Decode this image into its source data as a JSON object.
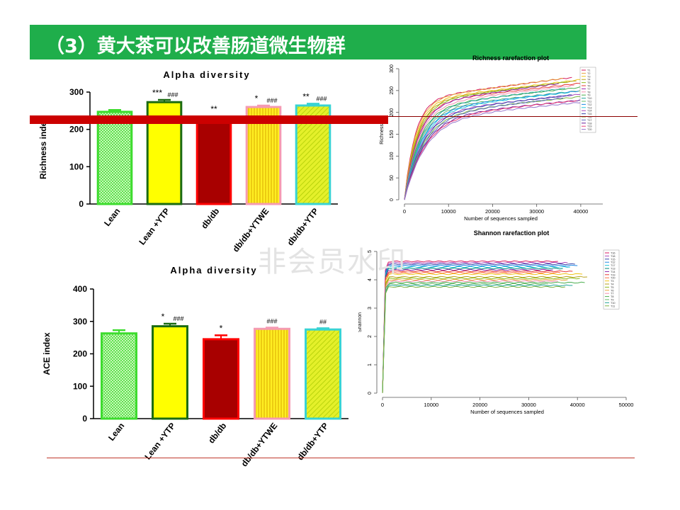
{
  "title": "（3）黄大茶可以改善肠道微生物群",
  "watermark": "非会员水印",
  "chart_data": [
    {
      "type": "bar",
      "title": "Alpha diversity",
      "ylabel": "Richness index",
      "ylim": [
        0,
        300
      ],
      "yticks": [
        "0",
        "100",
        "200",
        "300"
      ],
      "categories": [
        "Lean",
        "Lean +YTP",
        "db/db",
        "db/db+YTWE",
        "db/db+YTP"
      ],
      "values": [
        247,
        273,
        232,
        260,
        264
      ],
      "errors": [
        5,
        6,
        3,
        4,
        5
      ],
      "annotations": [
        {
          "star": "",
          "hash": ""
        },
        {
          "star": "***",
          "hash": "###"
        },
        {
          "star": "**",
          "hash": ""
        },
        {
          "star": "*",
          "hash": "###"
        },
        {
          "star": "**",
          "hash": "###"
        }
      ]
    },
    {
      "type": "bar",
      "title": "Alpha diversity",
      "ylabel": "ACE index",
      "ylim": [
        0,
        400
      ],
      "yticks": [
        "0",
        "100",
        "200",
        "300",
        "400"
      ],
      "categories": [
        "Lean",
        "Lean +YTP",
        "db/db",
        "db/db+YTWE",
        "db/db+YTP"
      ],
      "values": [
        263,
        285,
        245,
        277,
        275
      ],
      "errors": [
        10,
        8,
        12,
        4,
        4
      ],
      "annotations": [
        {
          "star": "",
          "hash": ""
        },
        {
          "star": "*",
          "hash": "###"
        },
        {
          "star": "*",
          "hash": ""
        },
        {
          "star": "",
          "hash": "###"
        },
        {
          "star": "",
          "hash": "##"
        }
      ]
    },
    {
      "type": "line",
      "title": "Richness rarefaction plot",
      "xlabel": "Number of sequences sampled",
      "ylabel": "Richness",
      "xlim": [
        0,
        45000
      ],
      "ylim": [
        0,
        300
      ],
      "xticks": [
        "0",
        "10000",
        "20000",
        "30000",
        "40000"
      ],
      "yticks": [
        "0",
        "50",
        "100",
        "150",
        "200",
        "250",
        "300"
      ],
      "legend_position": "top-right",
      "series": [
        {
          "name": "T1",
          "final_x": 38000,
          "final_y": 280,
          "color": "#d81b60"
        },
        {
          "name": "T2",
          "final_x": 36000,
          "final_y": 278,
          "color": "#e8a33d"
        },
        {
          "name": "T3",
          "final_x": 40000,
          "final_y": 275,
          "color": "#f0c419"
        },
        {
          "name": "T4",
          "final_x": 39000,
          "final_y": 272,
          "color": "#b7a21a"
        },
        {
          "name": "T5",
          "final_x": 37000,
          "final_y": 270,
          "color": "#8fbc1f"
        },
        {
          "name": "T6",
          "final_x": 41000,
          "final_y": 268,
          "color": "#e53935"
        },
        {
          "name": "T7",
          "final_x": 35000,
          "final_y": 266,
          "color": "#9c27b0"
        },
        {
          "name": "T8",
          "final_x": 38500,
          "final_y": 262,
          "color": "#f48fb1"
        },
        {
          "name": "T9",
          "final_x": 40500,
          "final_y": 258,
          "color": "#4caf50"
        },
        {
          "name": "T10",
          "final_x": 36500,
          "final_y": 255,
          "color": "#26a69a"
        },
        {
          "name": "T11",
          "final_x": 42000,
          "final_y": 252,
          "color": "#66bb6a"
        },
        {
          "name": "T12",
          "final_x": 39500,
          "final_y": 249,
          "color": "#1e88e5"
        },
        {
          "name": "T13",
          "final_x": 37500,
          "final_y": 246,
          "color": "#26c6da"
        },
        {
          "name": "T14",
          "final_x": 41500,
          "final_y": 243,
          "color": "#ab47bc"
        },
        {
          "name": "T15",
          "final_x": 38000,
          "final_y": 240,
          "color": "#3949ab"
        },
        {
          "name": "T16",
          "final_x": 40000,
          "final_y": 236,
          "color": "#7cb342"
        },
        {
          "name": "T17",
          "final_x": 36000,
          "final_y": 233,
          "color": "#5c6bc0"
        },
        {
          "name": "T18",
          "final_x": 42000,
          "final_y": 230,
          "color": "#6a1b9a"
        },
        {
          "name": "T19",
          "final_x": 39000,
          "final_y": 227,
          "color": "#ec407a"
        },
        {
          "name": "T20",
          "final_x": 41000,
          "final_y": 224,
          "color": "#9575cd"
        }
      ]
    },
    {
      "type": "line",
      "title": "Shannon rarefaction plot",
      "xlabel": "Number of sequences sampled",
      "ylabel": "Shannon",
      "xlim": [
        0,
        50000
      ],
      "ylim": [
        0,
        5
      ],
      "xticks": [
        "0",
        "10000",
        "20000",
        "30000",
        "40000",
        "50000"
      ],
      "yticks": [
        "0",
        "1",
        "2",
        "3",
        "4",
        "5"
      ],
      "legend_position": "top-right",
      "series": [
        {
          "name": "T16",
          "final_x": 36000,
          "final_y": 4.65,
          "color": "#d81b60"
        },
        {
          "name": "T18",
          "final_x": 38000,
          "final_y": 4.6,
          "color": "#ab47bc"
        },
        {
          "name": "T15",
          "final_x": 39500,
          "final_y": 4.55,
          "color": "#3949ab"
        },
        {
          "name": "T12",
          "final_x": 40000,
          "final_y": 4.5,
          "color": "#1e88e5"
        },
        {
          "name": "T17",
          "final_x": 38500,
          "final_y": 4.45,
          "color": "#26c6da"
        },
        {
          "name": "T13",
          "final_x": 37000,
          "final_y": 4.4,
          "color": "#00897b"
        },
        {
          "name": "T14",
          "final_x": 35000,
          "final_y": 4.35,
          "color": "#8e24aa"
        },
        {
          "name": "T19",
          "final_x": 39000,
          "final_y": 4.3,
          "color": "#e53935"
        },
        {
          "name": "T20",
          "final_x": 36500,
          "final_y": 4.25,
          "color": "#ff7043"
        },
        {
          "name": "T3",
          "final_x": 41000,
          "final_y": 4.2,
          "color": "#f0c419"
        },
        {
          "name": "T4",
          "final_x": 42000,
          "final_y": 4.1,
          "color": "#b7a21a"
        },
        {
          "name": "T5",
          "final_x": 40500,
          "final_y": 4.05,
          "color": "#8fbc1f"
        },
        {
          "name": "T6",
          "final_x": 38000,
          "final_y": 4.0,
          "color": "#e8a33d"
        },
        {
          "name": "T7",
          "final_x": 36000,
          "final_y": 3.95,
          "color": "#f48fb1"
        },
        {
          "name": "T8",
          "final_x": 41500,
          "final_y": 3.9,
          "color": "#4caf50"
        },
        {
          "name": "T9",
          "final_x": 34000,
          "final_y": 3.85,
          "color": "#66bb6a"
        },
        {
          "name": "T10",
          "final_x": 39000,
          "final_y": 3.8,
          "color": "#26a69a"
        },
        {
          "name": "T11",
          "final_x": 37500,
          "final_y": 3.75,
          "color": "#7cb342"
        }
      ]
    }
  ]
}
